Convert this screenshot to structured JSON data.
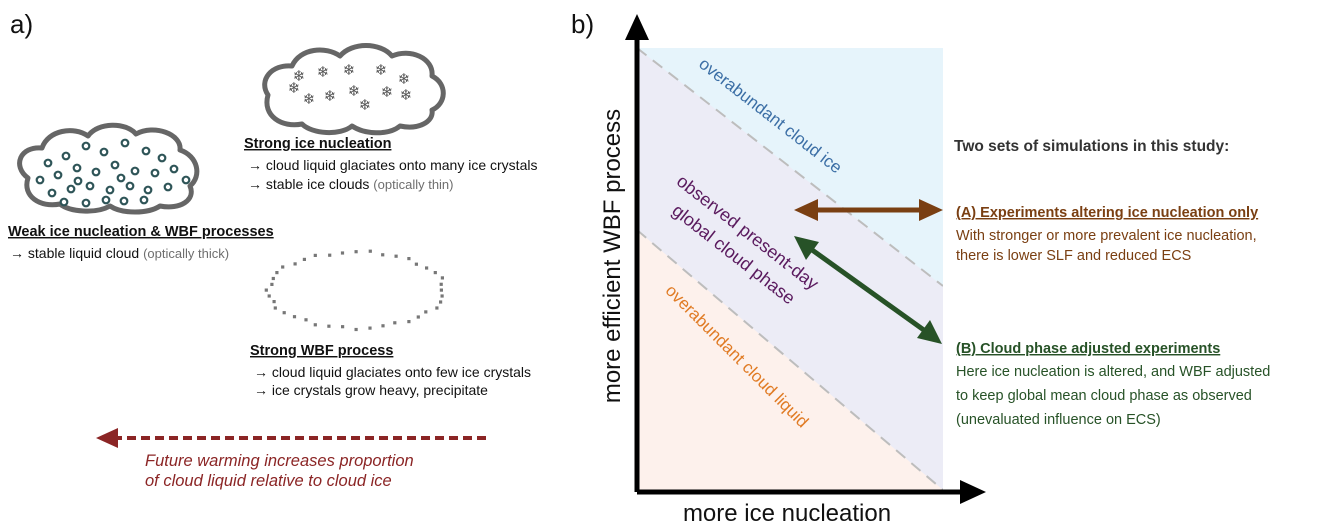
{
  "panel_a": {
    "label": "a)",
    "strong_ice": {
      "title": "Strong ice nucleation",
      "line1": "→ cloud liquid glaciates onto many ice crystals",
      "line2": "→ stable ice clouds",
      "line2_note": "(optically thin)"
    },
    "weak": {
      "title": "Weak ice nucleation & WBF processes",
      "line1": "→ stable liquid cloud",
      "line1_note": "(optically thick)"
    },
    "strong_wbf": {
      "title": "Strong WBF process",
      "line1": "→ cloud liquid glaciates onto few ice crystals",
      "line2": "→ ice crystals grow heavy, precipitate"
    },
    "future": {
      "line1": "Future warming increases proportion",
      "line2": "of cloud liquid relative to cloud ice"
    }
  },
  "panel_b": {
    "label": "b)",
    "x_axis": "more ice nucleation",
    "y_axis": "more efficient WBF process",
    "region_ice": "overabundant cloud ice",
    "region_obs_1": "observed present-day",
    "region_obs_2": "global cloud phase",
    "region_liquid": "overabundant cloud liquid"
  },
  "legend": {
    "heading": "Two sets of simulations in this study:",
    "a_title": "(A) Experiments altering ice nucleation only",
    "a_line1": "With stronger or more prevalent ice nucleation,",
    "a_line2": "there is lower SLF and reduced ECS",
    "b_title": "(B) Cloud phase adjusted experiments",
    "b_line1": "Here ice nucleation is altered, and WBF adjusted",
    "b_line2": "to keep global mean cloud phase as observed",
    "b_line3": "(unevaluated influence on ECS)"
  },
  "colors": {
    "future": "#8b2525",
    "ice_text": "#3b6ea5",
    "obs_text": "#5a1a5e",
    "liquid_text": "#e07b24",
    "exp_a": "#7a3f12",
    "exp_b": "#275227",
    "ice_fill": "#e6f4fb",
    "mid_fill": "#ececf6",
    "liquid_fill": "#fdf1ec",
    "cloud_stroke": "#666666",
    "droplet": "#2f5558"
  }
}
